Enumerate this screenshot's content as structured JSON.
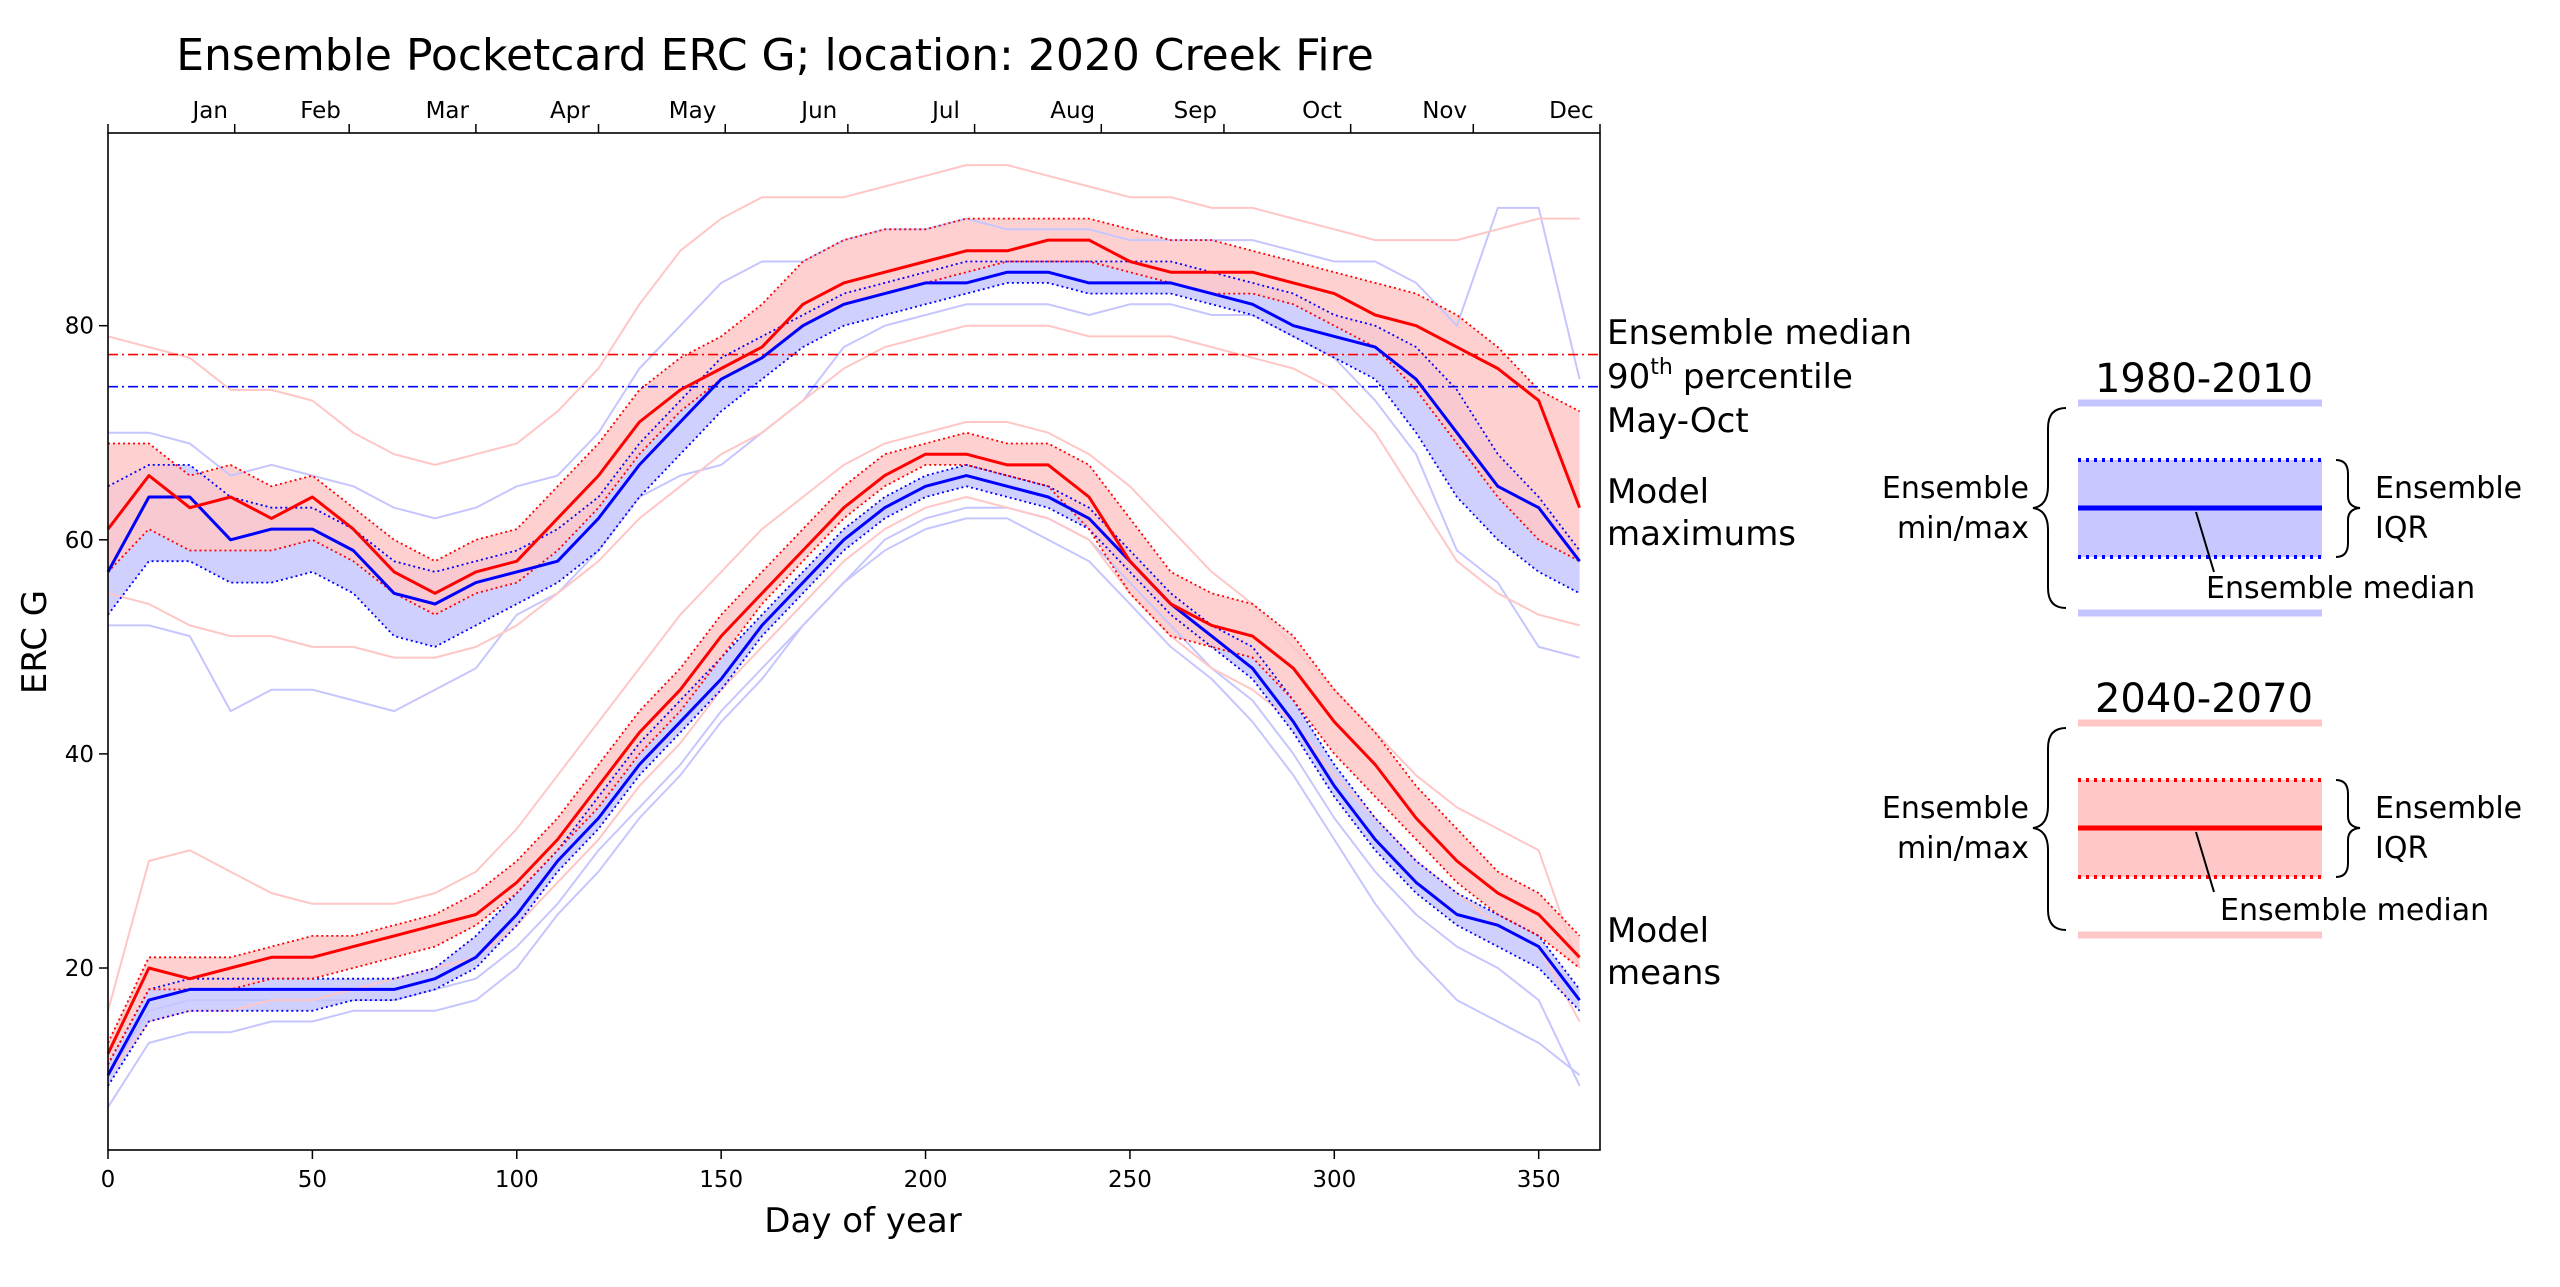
{
  "chart_data": {
    "type": "line",
    "title": "Ensemble Pocketcard ERC G; location: 2020 Creek Fire",
    "xlabel": "Day of year",
    "ylabel": "ERC G",
    "xlim": [
      0,
      365
    ],
    "ylim": [
      3,
      98
    ],
    "x_ticks": [
      0,
      50,
      100,
      150,
      200,
      250,
      300,
      350
    ],
    "y_ticks": [
      20,
      40,
      60,
      80
    ],
    "months": {
      "labels": [
        "Jan",
        "Feb",
        "Mar",
        "Apr",
        "May",
        "Jun",
        "Jul",
        "Aug",
        "Sep",
        "Oct",
        "Nov",
        "Dec"
      ],
      "label_days": [
        25,
        52,
        83,
        113,
        143,
        174,
        205,
        236,
        266,
        297,
        327,
        358
      ],
      "tick_days": [
        0,
        31,
        59,
        90,
        120,
        151,
        181,
        212,
        243,
        273,
        304,
        334,
        365
      ]
    },
    "grid": false,
    "colors": {
      "historical": "#0000ff",
      "future": "#ff0000",
      "historical_fill": "#c8c8ff",
      "future_fill": "#ffc8c8",
      "historical_thin": "#c6c6ff",
      "future_thin": "#ffc6c6"
    },
    "x": [
      0,
      10,
      20,
      30,
      40,
      50,
      60,
      70,
      80,
      90,
      100,
      110,
      120,
      130,
      140,
      150,
      160,
      170,
      180,
      190,
      200,
      210,
      220,
      230,
      240,
      250,
      260,
      270,
      280,
      290,
      300,
      310,
      320,
      330,
      340,
      350,
      360
    ],
    "series": [
      {
        "group": "maximums",
        "period": "1980-2010",
        "median": [
          57,
          64,
          64,
          60,
          61,
          61,
          59,
          55,
          54,
          56,
          57,
          58,
          62,
          67,
          71,
          75,
          77,
          80,
          82,
          83,
          84,
          84,
          85,
          85,
          84,
          84,
          84,
          83,
          82,
          80,
          79,
          78,
          75,
          70,
          65,
          63,
          58
        ],
        "q1": [
          53,
          58,
          58,
          56,
          56,
          57,
          55,
          51,
          50,
          52,
          54,
          56,
          59,
          64,
          68,
          72,
          75,
          78,
          80,
          81,
          82,
          83,
          84,
          84,
          83,
          83,
          83,
          82,
          81,
          79,
          77,
          75,
          70,
          64,
          60,
          57,
          55
        ],
        "q3": [
          65,
          67,
          67,
          64,
          63,
          63,
          61,
          58,
          57,
          58,
          59,
          61,
          64,
          69,
          73,
          77,
          79,
          81,
          83,
          84,
          85,
          86,
          86,
          86,
          86,
          86,
          86,
          85,
          84,
          83,
          81,
          80,
          78,
          74,
          68,
          64,
          59
        ]
      },
      {
        "group": "maximums",
        "period": "2040-2070",
        "median": [
          61,
          66,
          63,
          64,
          62,
          64,
          61,
          57,
          55,
          57,
          58,
          62,
          66,
          71,
          74,
          76,
          78,
          82,
          84,
          85,
          86,
          87,
          87,
          88,
          88,
          86,
          85,
          85,
          85,
          84,
          83,
          81,
          80,
          78,
          76,
          73,
          63
        ],
        "q1": [
          57,
          61,
          59,
          59,
          59,
          60,
          58,
          55,
          53,
          55,
          56,
          59,
          63,
          68,
          72,
          75,
          77,
          80,
          82,
          83,
          84,
          85,
          86,
          86,
          86,
          85,
          84,
          83,
          83,
          82,
          80,
          78,
          74,
          69,
          64,
          60,
          58
        ],
        "q3": [
          69,
          69,
          66,
          67,
          65,
          66,
          63,
          60,
          58,
          60,
          61,
          65,
          69,
          74,
          77,
          79,
          82,
          86,
          88,
          89,
          89,
          90,
          90,
          90,
          90,
          89,
          88,
          88,
          87,
          86,
          85,
          84,
          83,
          81,
          78,
          74,
          72
        ]
      },
      {
        "group": "means",
        "period": "1980-2010",
        "median": [
          10,
          17,
          18,
          18,
          18,
          18,
          18,
          18,
          19,
          21,
          25,
          30,
          34,
          39,
          43,
          47,
          52,
          56,
          60,
          63,
          65,
          66,
          65,
          64,
          62,
          58,
          54,
          51,
          48,
          43,
          37,
          32,
          28,
          25,
          24,
          22,
          17
        ],
        "q1": [
          9,
          15,
          16,
          16,
          16,
          16,
          17,
          17,
          18,
          20,
          24,
          29,
          33,
          38,
          42,
          46,
          51,
          55,
          59,
          62,
          64,
          65,
          64,
          63,
          61,
          57,
          53,
          50,
          47,
          42,
          36,
          31,
          27,
          24,
          22,
          20,
          16
        ],
        "q3": [
          11,
          18,
          19,
          19,
          19,
          19,
          19,
          19,
          20,
          23,
          27,
          31,
          36,
          41,
          45,
          49,
          53,
          57,
          61,
          64,
          66,
          67,
          66,
          65,
          63,
          59,
          55,
          52,
          50,
          45,
          39,
          34,
          30,
          27,
          25,
          23,
          18
        ]
      },
      {
        "group": "means",
        "period": "2040-2070",
        "median": [
          12,
          20,
          19,
          20,
          21,
          21,
          22,
          23,
          24,
          25,
          28,
          32,
          37,
          42,
          46,
          51,
          55,
          59,
          63,
          66,
          68,
          68,
          67,
          67,
          64,
          58,
          54,
          52,
          51,
          48,
          43,
          39,
          34,
          30,
          27,
          25,
          21
        ],
        "q1": [
          11,
          18,
          18,
          18,
          19,
          19,
          20,
          21,
          22,
          24,
          27,
          31,
          35,
          40,
          44,
          49,
          54,
          58,
          62,
          65,
          67,
          67,
          66,
          65,
          61,
          55,
          51,
          50,
          49,
          45,
          40,
          36,
          32,
          28,
          25,
          23,
          20
        ],
        "q3": [
          13,
          21,
          21,
          21,
          22,
          23,
          23,
          24,
          25,
          27,
          30,
          34,
          39,
          44,
          48,
          53,
          57,
          61,
          65,
          68,
          69,
          70,
          69,
          69,
          67,
          62,
          57,
          55,
          54,
          51,
          46,
          42,
          37,
          33,
          29,
          27,
          23
        ]
      }
    ],
    "model_lines": [
      {
        "period": "1980-2010",
        "group": "maximums",
        "values": [
          52,
          52,
          51,
          44,
          46,
          46,
          45,
          44,
          46,
          48,
          53,
          55,
          59,
          64,
          66,
          67,
          70,
          73,
          78,
          80,
          81,
          82,
          82,
          82,
          81,
          82,
          82,
          81,
          81,
          79,
          77,
          73,
          68,
          59,
          56,
          50,
          49
        ]
      },
      {
        "period": "1980-2010",
        "group": "maximums",
        "values": [
          70,
          70,
          69,
          66,
          67,
          66,
          65,
          63,
          62,
          63,
          65,
          66,
          70,
          76,
          80,
          84,
          86,
          86,
          88,
          89,
          89,
          90,
          89,
          89,
          89,
          88,
          88,
          88,
          88,
          87,
          86,
          86,
          84,
          80,
          91,
          91,
          75
        ]
      },
      {
        "period": "2040-2070",
        "group": "maximums",
        "values": [
          79,
          78,
          77,
          74,
          74,
          73,
          70,
          68,
          67,
          68,
          69,
          72,
          76,
          82,
          87,
          90,
          92,
          92,
          92,
          93,
          94,
          95,
          95,
          94,
          93,
          92,
          92,
          91,
          91,
          90,
          89,
          88,
          88,
          88,
          89,
          90,
          90
        ]
      },
      {
        "period": "2040-2070",
        "group": "maximums",
        "values": [
          55,
          54,
          52,
          51,
          51,
          50,
          50,
          49,
          49,
          50,
          52,
          55,
          58,
          62,
          65,
          68,
          70,
          73,
          76,
          78,
          79,
          80,
          80,
          80,
          79,
          79,
          79,
          78,
          77,
          76,
          74,
          70,
          64,
          58,
          55,
          53,
          52
        ]
      },
      {
        "period": "1980-2010",
        "group": "means",
        "values": [
          7,
          13,
          14,
          14,
          15,
          15,
          16,
          16,
          16,
          17,
          20,
          25,
          29,
          34,
          38,
          43,
          47,
          52,
          56,
          59,
          61,
          62,
          62,
          60,
          58,
          54,
          50,
          47,
          43,
          38,
          32,
          26,
          21,
          17,
          15,
          13,
          10
        ]
      },
      {
        "period": "1980-2010",
        "group": "means",
        "values": [
          10,
          16,
          17,
          17,
          17,
          17,
          17,
          17,
          18,
          19,
          22,
          26,
          31,
          35,
          39,
          44,
          48,
          52,
          56,
          60,
          62,
          63,
          63,
          62,
          60,
          56,
          52,
          48,
          45,
          40,
          34,
          29,
          25,
          22,
          20,
          17,
          9
        ]
      },
      {
        "period": "2040-2070",
        "group": "means",
        "values": [
          16,
          30,
          31,
          29,
          27,
          26,
          26,
          26,
          27,
          29,
          33,
          38,
          43,
          48,
          53,
          57,
          61,
          64,
          67,
          69,
          70,
          71,
          71,
          70,
          68,
          65,
          61,
          57,
          54,
          50,
          46,
          42,
          38,
          35,
          33,
          31,
          20
        ]
      },
      {
        "period": "2040-2070",
        "group": "means",
        "values": [
          10,
          15,
          16,
          16,
          17,
          17,
          18,
          19,
          20,
          21,
          24,
          28,
          32,
          37,
          41,
          46,
          50,
          54,
          58,
          61,
          63,
          64,
          63,
          62,
          60,
          55,
          51,
          48,
          46,
          43,
          38,
          34,
          30,
          27,
          24,
          22,
          15
        ]
      }
    ],
    "reference_lines": [
      {
        "period": "2040-2070",
        "value": 77.3,
        "label": "Ensemble median 90th percentile May-Oct"
      },
      {
        "period": "1980-2010",
        "value": 74.3,
        "label": "Ensemble median 90th percentile May-Oct"
      }
    ],
    "annotations": {
      "reference_label_lines": [
        "Ensemble median",
        "percentile",
        "May-Oct"
      ],
      "reference_label_sup_number": "90",
      "reference_label_sup": "th",
      "maximums_label_lines": [
        "Model",
        "maximums"
      ],
      "means_label_lines": [
        "Model",
        "means"
      ]
    },
    "legend": {
      "placement": "right",
      "panels": [
        {
          "title": "1980-2010",
          "color": "#0000ff",
          "fill": "#c8c8ff",
          "thin": "#c6c6ff",
          "min_max_lines": [
            "Ensemble",
            "min/max"
          ],
          "iqr_lines": [
            "Ensemble",
            "IQR"
          ],
          "median_label": "Ensemble median"
        },
        {
          "title": "2040-2070",
          "color": "#ff0000",
          "fill": "#ffc8c8",
          "thin": "#ffc6c6",
          "min_max_lines": [
            "Ensemble",
            "min/max"
          ],
          "iqr_lines": [
            "Ensemble",
            "IQR"
          ],
          "median_label": "Ensemble median"
        }
      ]
    }
  }
}
